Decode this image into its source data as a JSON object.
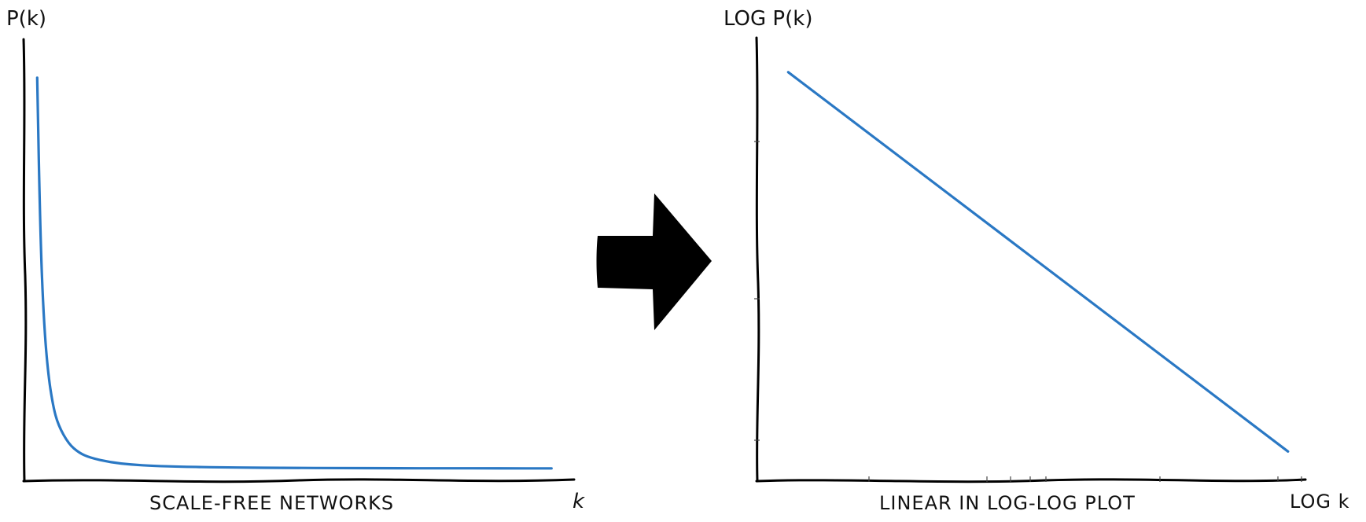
{
  "chart_data": [
    {
      "type": "line",
      "title": "",
      "ylabel": "P(k)",
      "xlabel": "SCALE-FREE NETWORKS",
      "x_end_label": "k",
      "grid": false,
      "series": [
        {
          "color": "#2a78c4",
          "x": [
            1,
            1.3,
            1.6,
            2,
            2.5,
            3,
            4,
            5,
            6,
            8,
            10,
            12,
            15,
            20,
            25,
            30,
            35,
            40,
            45,
            50
          ],
          "y": [
            1.0,
            0.59,
            0.39,
            0.25,
            0.16,
            0.111,
            0.0625,
            0.04,
            0.0278,
            0.0156,
            0.01,
            0.0069,
            0.0044,
            0.0025,
            0.0016,
            0.0011,
            0.0008,
            0.0006,
            0.0005,
            0.0004
          ]
        }
      ],
      "xlim": [
        0,
        52
      ],
      "ylim": [
        0,
        1.05
      ]
    },
    {
      "type": "line",
      "title": "",
      "ylabel": "LOG P(k)",
      "xlabel": "LINEAR IN LOG-LOG PLOT",
      "x_end_label": "LOG k",
      "grid": false,
      "series": [
        {
          "color": "#2a78c4",
          "x": [
            0,
            1.75
          ],
          "y": [
            0,
            -3.5
          ]
        }
      ],
      "xlim": [
        -0.1,
        1.8
      ],
      "ylim": [
        -3.65,
        0.1
      ]
    }
  ],
  "transition_arrow": {
    "color": "#000000"
  }
}
